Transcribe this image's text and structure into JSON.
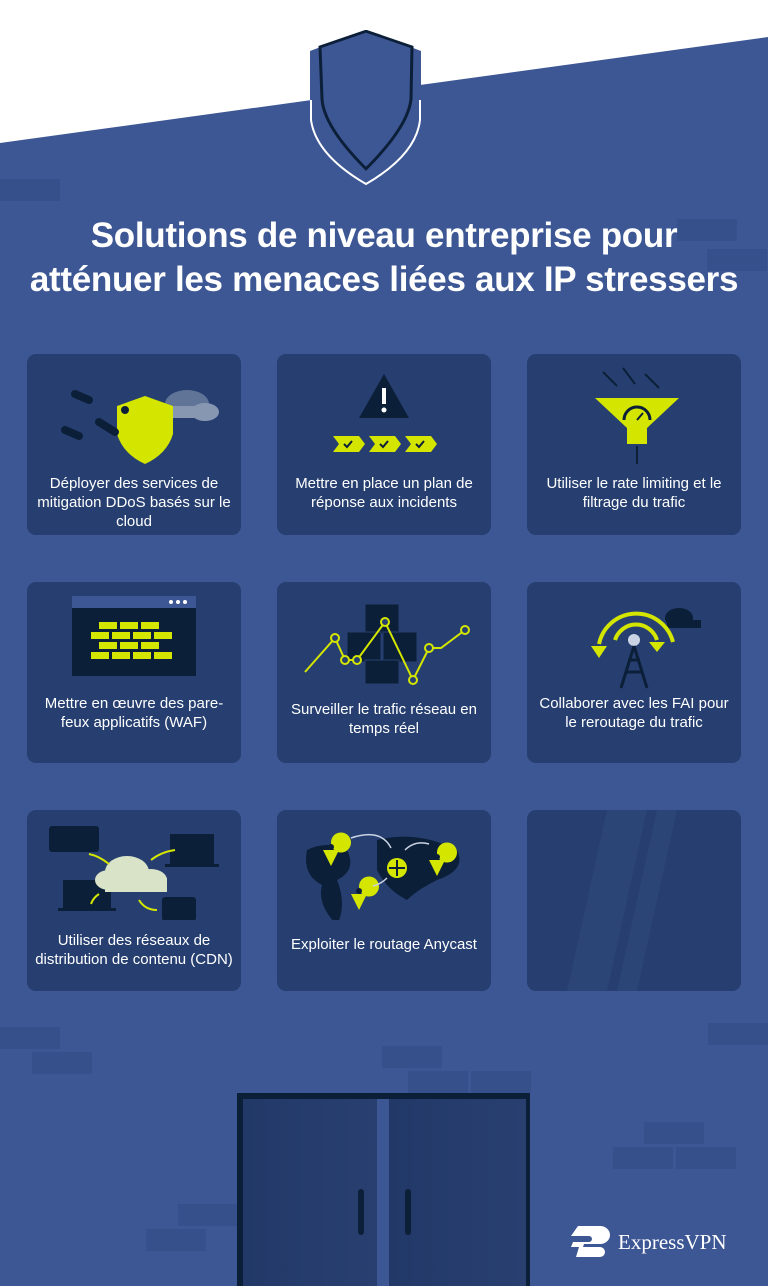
{
  "title": {
    "line1": "Solutions de niveau entreprise pour",
    "line2": "atténuer les menaces liées aux IP stressers"
  },
  "cards": [
    {
      "icon": "cloud-shield-icon",
      "label": "Déployer des services de mitigation DDoS basés sur le cloud"
    },
    {
      "icon": "warning-checklist-icon",
      "label": "Mettre en place un plan de réponse aux incidents"
    },
    {
      "icon": "filter-funnel-icon",
      "label": "Utiliser le rate limiting et le filtrage du trafic"
    },
    {
      "icon": "firewall-browser-icon",
      "label": "Mettre en œuvre des pare-feux applicatifs (WAF)"
    },
    {
      "icon": "network-graph-icon",
      "label": "Surveiller le trafic réseau en temps réel"
    },
    {
      "icon": "antenna-reroute-icon",
      "label": "Collaborer avec les FAI pour le reroutage du trafic"
    },
    {
      "icon": "cdn-cloud-devices-icon",
      "label": "Utiliser des réseaux de distribution de contenu (CDN)"
    },
    {
      "icon": "world-map-pins-icon",
      "label": "Exploiter le routage Anycast"
    }
  ],
  "brand": {
    "name": "ExpressVPN"
  },
  "colors": {
    "background": "#3d5795",
    "card": "#263f70",
    "accent": "#d4e600",
    "dark": "#0c1f38"
  }
}
